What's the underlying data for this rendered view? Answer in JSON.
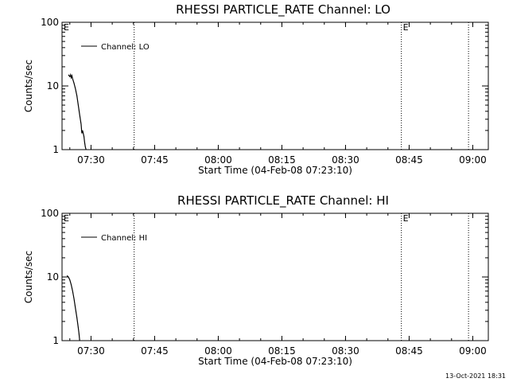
{
  "footer": {
    "timestamp": "13-Oct-2021 18:31"
  },
  "chart_data": [
    {
      "type": "line",
      "title": "RHESSI PARTICLE_RATE Channel: LO",
      "xlabel": "Start Time (04-Feb-08 07:23:10)",
      "ylabel": "Counts/sec",
      "y_scale": "log",
      "ylim": [
        1,
        100
      ],
      "xlim": [
        "07:23:10",
        "09:03:40"
      ],
      "x_ticks": [
        "07:30",
        "07:45",
        "08:00",
        "08:15",
        "08:30",
        "08:45",
        "09:00"
      ],
      "y_ticks": [
        "1",
        "10",
        "100"
      ],
      "grid": false,
      "legend": {
        "position": "top-left",
        "entries": [
          "Channel: LO"
        ]
      },
      "markers": [
        {
          "time": "07:23:10",
          "label": "E"
        },
        {
          "time": "07:40:10",
          "label": ""
        },
        {
          "time": "08:43:10",
          "label": "E"
        },
        {
          "time": "08:59:00",
          "label": ""
        }
      ],
      "series": [
        {
          "name": "Channel: LO",
          "x": [
            "07:24:40",
            "07:25:00",
            "07:25:10",
            "07:25:20",
            "07:25:30",
            "07:25:40",
            "07:26:00",
            "07:26:20",
            "07:26:40",
            "07:27:00",
            "07:27:20",
            "07:27:40",
            "07:27:50",
            "07:28:00",
            "07:28:10",
            "07:28:20",
            "07:28:30",
            "07:28:40",
            "07:28:50"
          ],
          "y": [
            15,
            14,
            15,
            13.5,
            14.5,
            13,
            11,
            9,
            7,
            5,
            3.5,
            2.5,
            1.8,
            2,
            1.8,
            1.6,
            1.3,
            1.1,
            1
          ]
        }
      ]
    },
    {
      "type": "line",
      "title": "RHESSI PARTICLE_RATE Channel: HI",
      "xlabel": "Start Time (04-Feb-08 07:23:10)",
      "ylabel": "Counts/sec",
      "y_scale": "log",
      "ylim": [
        1,
        100
      ],
      "xlim": [
        "07:23:10",
        "09:03:40"
      ],
      "x_ticks": [
        "07:30",
        "07:45",
        "08:00",
        "08:15",
        "08:30",
        "08:45",
        "09:00"
      ],
      "y_ticks": [
        "1",
        "10",
        "100"
      ],
      "grid": false,
      "legend": {
        "position": "top-left",
        "entries": [
          "Channel: HI"
        ]
      },
      "markers": [
        {
          "time": "07:23:10",
          "label": "E"
        },
        {
          "time": "07:40:10",
          "label": ""
        },
        {
          "time": "08:43:10",
          "label": "E"
        },
        {
          "time": "08:59:00",
          "label": ""
        }
      ],
      "series": [
        {
          "name": "Channel: HI",
          "x": [
            "07:24:20",
            "07:24:40",
            "07:25:00",
            "07:25:20",
            "07:25:40",
            "07:26:00",
            "07:26:20",
            "07:26:40",
            "07:27:00",
            "07:27:10",
            "07:27:20"
          ],
          "y": [
            10.5,
            10,
            9,
            7.5,
            6,
            4.5,
            3.2,
            2.3,
            1.6,
            1.3,
            1
          ]
        }
      ]
    }
  ]
}
